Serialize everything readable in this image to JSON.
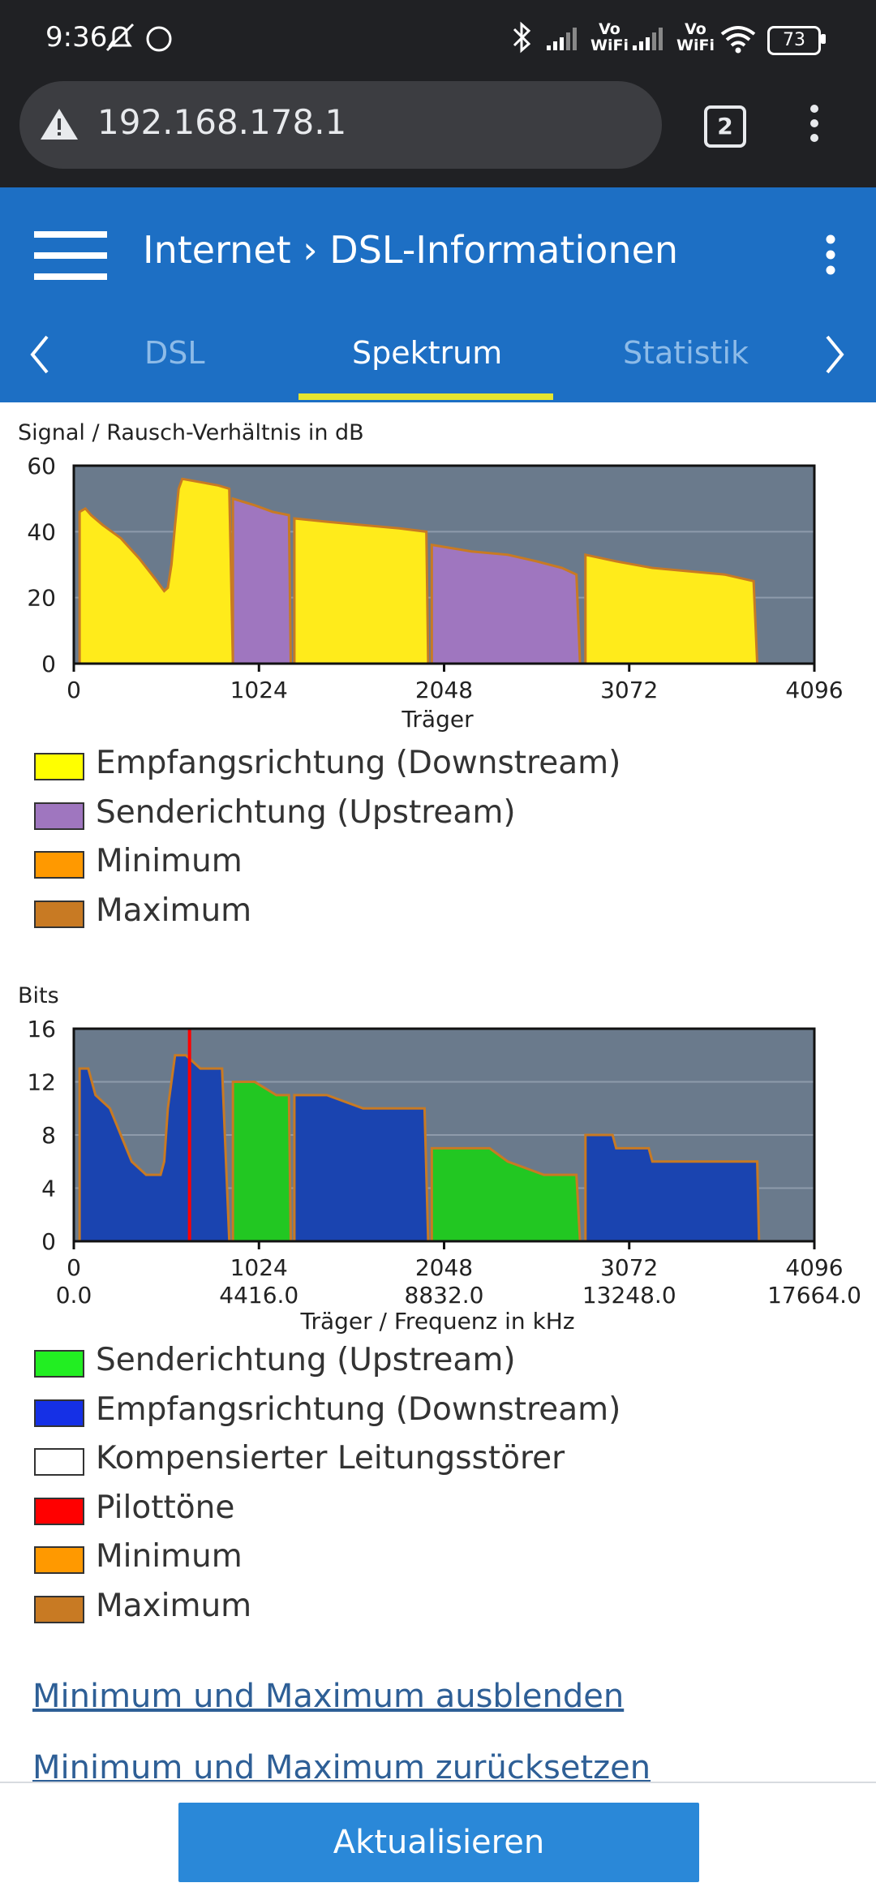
{
  "status_bar": {
    "time": "9:36",
    "battery": "73",
    "icons": [
      "mute-bell-icon",
      "circle-icon",
      "bluetooth-icon",
      "signal-icon",
      "vowifi-icon",
      "signal-icon",
      "vowifi-icon",
      "wifi-icon",
      "battery-icon"
    ],
    "vowifi_label": "Vo\nWiFi"
  },
  "browser": {
    "url": "192.168.178.1",
    "tab_count": "2"
  },
  "header": {
    "title": "Internet › DSL-Informationen",
    "tabs": [
      "DSL",
      "Spektrum",
      "Statistik"
    ],
    "active_tab": "Spektrum"
  },
  "chart_snr": {
    "type": "area",
    "title": "Signal / Rausch-Verhältnis in dB",
    "xlabel": "Träger",
    "x_ticks": [
      "0",
      "1024",
      "2048",
      "3072",
      "4096"
    ],
    "y_ticks": [
      "60",
      "40",
      "20",
      "0"
    ],
    "xlim": [
      0,
      4096
    ],
    "ylim": [
      0,
      60
    ],
    "colors": {
      "downstream": "#ffeb1b",
      "upstream": "#9f76bf",
      "min": "#ff9900",
      "max": "#c87a23",
      "bg": "#6a7a8c"
    },
    "series": [
      {
        "name": "downstream",
        "points": [
          [
            32,
            46
          ],
          [
            64,
            47
          ],
          [
            96,
            45
          ],
          [
            160,
            42
          ],
          [
            260,
            38
          ],
          [
            360,
            32
          ],
          [
            460,
            25
          ],
          [
            500,
            22
          ],
          [
            520,
            23
          ],
          [
            540,
            30
          ],
          [
            560,
            42
          ],
          [
            580,
            53
          ],
          [
            600,
            56
          ],
          [
            700,
            55
          ],
          [
            800,
            54
          ],
          [
            860,
            53
          ],
          [
            880,
            0
          ]
        ]
      },
      {
        "name": "upstream",
        "points": [
          [
            880,
            50
          ],
          [
            1000,
            48
          ],
          [
            1100,
            46
          ],
          [
            1190,
            45
          ],
          [
            1200,
            0
          ]
        ]
      },
      {
        "name": "downstream",
        "points": [
          [
            1220,
            44
          ],
          [
            1400,
            43
          ],
          [
            1600,
            42
          ],
          [
            1800,
            41
          ],
          [
            1950,
            40
          ],
          [
            1960,
            0
          ]
        ]
      },
      {
        "name": "upstream",
        "points": [
          [
            1980,
            36
          ],
          [
            2200,
            34
          ],
          [
            2400,
            33
          ],
          [
            2560,
            31
          ],
          [
            2700,
            29
          ],
          [
            2780,
            27
          ],
          [
            2800,
            0
          ]
        ]
      },
      {
        "name": "downstream",
        "points": [
          [
            2830,
            33
          ],
          [
            3000,
            31
          ],
          [
            3200,
            29
          ],
          [
            3400,
            28
          ],
          [
            3600,
            27
          ],
          [
            3760,
            25
          ],
          [
            3780,
            0
          ]
        ]
      }
    ]
  },
  "chart_snr_legend": [
    {
      "label": "Empfangsrichtung (Downstream)",
      "color": "#ffff00"
    },
    {
      "label": "Senderichtung (Upstream)",
      "color": "#9f76bf"
    },
    {
      "label": "Minimum",
      "color": "#ff9900"
    },
    {
      "label": "Maximum",
      "color": "#c87a23"
    }
  ],
  "chart_bits": {
    "type": "area",
    "ylabel": "Bits",
    "xlabel": "Träger / Frequenz in kHz",
    "x_ticks": [
      "0",
      "1024",
      "2048",
      "3072",
      "4096"
    ],
    "x_freq_ticks": [
      "0.0",
      "4416.0",
      "8832.0",
      "13248.0",
      "17664.0"
    ],
    "y_ticks": [
      "16",
      "12",
      "8",
      "4",
      "0"
    ],
    "xlim": [
      0,
      4096
    ],
    "ylim": [
      0,
      16
    ],
    "pilot_tone": 640,
    "colors": {
      "downstream": "#1a44b0",
      "upstream": "#22c722",
      "pilot": "#ff0000",
      "min": "#ff9900",
      "max": "#c87a23",
      "bg": "#6a7a8c"
    },
    "series": [
      {
        "name": "downstream",
        "points": [
          [
            32,
            13
          ],
          [
            80,
            13
          ],
          [
            120,
            11
          ],
          [
            200,
            10
          ],
          [
            260,
            8
          ],
          [
            320,
            6
          ],
          [
            400,
            5
          ],
          [
            480,
            5
          ],
          [
            500,
            6
          ],
          [
            520,
            10
          ],
          [
            560,
            14
          ],
          [
            620,
            14
          ],
          [
            700,
            13
          ],
          [
            820,
            13
          ],
          [
            860,
            0
          ]
        ]
      },
      {
        "name": "upstream",
        "points": [
          [
            880,
            12
          ],
          [
            1000,
            12
          ],
          [
            1120,
            11
          ],
          [
            1190,
            11
          ],
          [
            1200,
            0
          ]
        ]
      },
      {
        "name": "downstream",
        "points": [
          [
            1220,
            11
          ],
          [
            1400,
            11
          ],
          [
            1600,
            10
          ],
          [
            1940,
            10
          ],
          [
            1960,
            0
          ]
        ]
      },
      {
        "name": "upstream",
        "points": [
          [
            1980,
            7
          ],
          [
            2300,
            7
          ],
          [
            2400,
            6
          ],
          [
            2600,
            5
          ],
          [
            2780,
            5
          ],
          [
            2800,
            0
          ]
        ]
      },
      {
        "name": "downstream",
        "points": [
          [
            2830,
            8
          ],
          [
            2980,
            8
          ],
          [
            3000,
            7
          ],
          [
            3180,
            7
          ],
          [
            3200,
            6
          ],
          [
            3780,
            6
          ],
          [
            3790,
            0
          ]
        ]
      }
    ]
  },
  "chart_bits_legend": [
    {
      "label": "Senderichtung (Upstream)",
      "color": "#22ee22"
    },
    {
      "label": "Empfangsrichtung (Downstream)",
      "color": "#1530e6"
    },
    {
      "label": "Kompensierter Leitungsstörer",
      "color": "#ffffff"
    },
    {
      "label": "Pilottöne",
      "color": "#ff0000"
    },
    {
      "label": "Minimum",
      "color": "#ff9900"
    },
    {
      "label": "Maximum",
      "color": "#c87a23"
    }
  ],
  "links": {
    "hide_minmax": "Minimum und Maximum ausblenden",
    "reset_minmax": "Minimum und Maximum zurücksetzen"
  },
  "buttons": {
    "refresh": "Aktualisieren"
  }
}
